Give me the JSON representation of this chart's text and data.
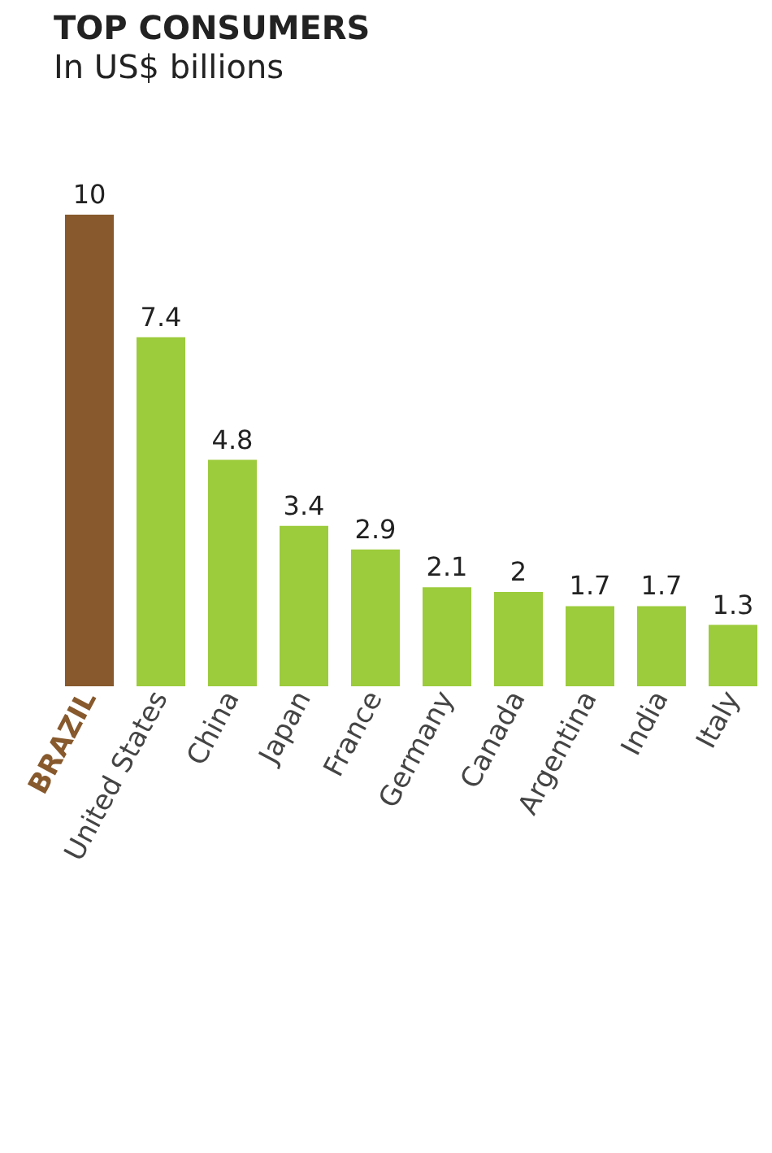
{
  "chart_data": {
    "type": "bar",
    "title": "TOP CONSUMERS",
    "subtitle": "In US$ billions",
    "categories": [
      "BRAZIL",
      "United States",
      "China",
      "Japan",
      "France",
      "Germany",
      "Canada",
      "Argentina",
      "India",
      "Italy"
    ],
    "values": [
      10,
      7.4,
      4.8,
      3.4,
      2.9,
      2.1,
      2,
      1.7,
      1.7,
      1.3
    ],
    "colors": [
      "#87592c",
      "#9ccb3b",
      "#9ccb3b",
      "#9ccb3b",
      "#9ccb3b",
      "#9ccb3b",
      "#9ccb3b",
      "#9ccb3b",
      "#9ccb3b",
      "#9ccb3b"
    ],
    "data_labels": true
  }
}
